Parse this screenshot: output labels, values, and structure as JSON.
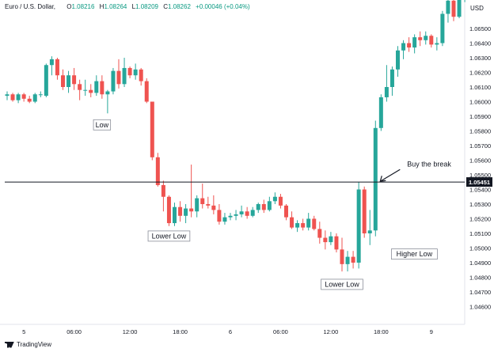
{
  "header": {
    "symbol": "Euro / U.S. Dollar,",
    "o_label": "O",
    "o_value": "1.08216",
    "h_label": "H",
    "h_value": "1.08264",
    "l_label": "L",
    "l_value": "1.08209",
    "c_label": "C",
    "c_value": "1.08262",
    "change": "+0.00046 (+0.04%)"
  },
  "currency": "USD",
  "branding": "TradingView",
  "colors": {
    "up": "#26a69a",
    "down": "#ef5350",
    "line": "#131722",
    "axis_text": "#131722"
  },
  "chart_data": {
    "type": "candlestick",
    "y_ticks": [
      "1.06500",
      "1.06400",
      "1.06300",
      "1.06200",
      "1.06100",
      "1.06000",
      "1.05900",
      "1.05800",
      "1.05700",
      "1.05600",
      "1.05500",
      "1.05400",
      "1.05300",
      "1.05200",
      "1.05100",
      "1.05000",
      "1.04900",
      "1.04800",
      "1.04700",
      "1.04600"
    ],
    "y_ticks_num": [
      1.065,
      1.064,
      1.063,
      1.062,
      1.061,
      1.06,
      1.059,
      1.058,
      1.057,
      1.056,
      1.055,
      1.054,
      1.053,
      1.052,
      1.051,
      1.05,
      1.049,
      1.048,
      1.047,
      1.046
    ],
    "x_ticks": [
      "5",
      "06:00",
      "12:00",
      "18:00",
      "6",
      "06:00",
      "12:00",
      "18:00",
      "9"
    ],
    "x_tick_index": [
      3,
      12,
      22,
      31,
      40,
      49,
      58,
      67,
      76
    ],
    "horizontal_level": {
      "value": 1.05451,
      "label": "1.05451"
    },
    "annotations": [
      {
        "text": "Low",
        "index": 17,
        "price": 1.0592,
        "place": "below"
      },
      {
        "text": "Lower Low",
        "index": 29,
        "price": 1.0516,
        "place": "below"
      },
      {
        "text": "Lower Low",
        "index": 60,
        "price": 1.0483,
        "place": "below"
      },
      {
        "text": "Higher Low",
        "index": 68,
        "price": 1.0501,
        "place": "right"
      },
      {
        "text": "Buy the break",
        "index": 66,
        "price": 1.0545,
        "place": "arrow"
      }
    ],
    "candles": [
      {
        "o": 1.0604,
        "h": 1.0607,
        "l": 1.0601,
        "c": 1.0605
      },
      {
        "o": 1.0605,
        "h": 1.0606,
        "l": 1.06,
        "c": 1.0601
      },
      {
        "o": 1.0601,
        "h": 1.0606,
        "l": 1.0599,
        "c": 1.0605
      },
      {
        "o": 1.0605,
        "h": 1.0606,
        "l": 1.06,
        "c": 1.0602
      },
      {
        "o": 1.0602,
        "h": 1.0604,
        "l": 1.0599,
        "c": 1.06
      },
      {
        "o": 1.06,
        "h": 1.0606,
        "l": 1.0599,
        "c": 1.0605
      },
      {
        "o": 1.0605,
        "h": 1.0607,
        "l": 1.0603,
        "c": 1.0605
      },
      {
        "o": 1.0604,
        "h": 1.0626,
        "l": 1.0603,
        "c": 1.0625
      },
      {
        "o": 1.0625,
        "h": 1.0631,
        "l": 1.0618,
        "c": 1.0629
      },
      {
        "o": 1.0629,
        "h": 1.063,
        "l": 1.0615,
        "c": 1.0618
      },
      {
        "o": 1.0618,
        "h": 1.0622,
        "l": 1.0608,
        "c": 1.061
      },
      {
        "o": 1.061,
        "h": 1.0621,
        "l": 1.0606,
        "c": 1.0618
      },
      {
        "o": 1.0618,
        "h": 1.0623,
        "l": 1.0608,
        "c": 1.0612
      },
      {
        "o": 1.0612,
        "h": 1.0615,
        "l": 1.0601,
        "c": 1.0608
      },
      {
        "o": 1.0608,
        "h": 1.0615,
        "l": 1.0604,
        "c": 1.0608
      },
      {
        "o": 1.0608,
        "h": 1.0612,
        "l": 1.0603,
        "c": 1.0606
      },
      {
        "o": 1.0606,
        "h": 1.0618,
        "l": 1.0604,
        "c": 1.0614
      },
      {
        "o": 1.0614,
        "h": 1.0618,
        "l": 1.0602,
        "c": 1.0605
      },
      {
        "o": 1.0605,
        "h": 1.0608,
        "l": 1.0592,
        "c": 1.0607
      },
      {
        "o": 1.0607,
        "h": 1.0623,
        "l": 1.0605,
        "c": 1.0621
      },
      {
        "o": 1.0621,
        "h": 1.0629,
        "l": 1.0609,
        "c": 1.0612
      },
      {
        "o": 1.0612,
        "h": 1.063,
        "l": 1.061,
        "c": 1.0623
      },
      {
        "o": 1.0623,
        "h": 1.0624,
        "l": 1.0616,
        "c": 1.0618
      },
      {
        "o": 1.0618,
        "h": 1.0626,
        "l": 1.0615,
        "c": 1.0622
      },
      {
        "o": 1.0622,
        "h": 1.0623,
        "l": 1.0611,
        "c": 1.0614
      },
      {
        "o": 1.0614,
        "h": 1.0616,
        "l": 1.0599,
        "c": 1.06
      },
      {
        "o": 1.06,
        "h": 1.06,
        "l": 1.056,
        "c": 1.0562
      },
      {
        "o": 1.0562,
        "h": 1.0565,
        "l": 1.0542,
        "c": 1.0543
      },
      {
        "o": 1.0543,
        "h": 1.0546,
        "l": 1.0525,
        "c": 1.0535
      },
      {
        "o": 1.0535,
        "h": 1.0536,
        "l": 1.0515,
        "c": 1.0517
      },
      {
        "o": 1.0517,
        "h": 1.0531,
        "l": 1.0515,
        "c": 1.0528
      },
      {
        "o": 1.0528,
        "h": 1.0532,
        "l": 1.0518,
        "c": 1.0522
      },
      {
        "o": 1.0522,
        "h": 1.053,
        "l": 1.0517,
        "c": 1.0527
      },
      {
        "o": 1.0527,
        "h": 1.0557,
        "l": 1.0521,
        "c": 1.0525
      },
      {
        "o": 1.0525,
        "h": 1.0536,
        "l": 1.0521,
        "c": 1.0534
      },
      {
        "o": 1.0534,
        "h": 1.0544,
        "l": 1.0527,
        "c": 1.053
      },
      {
        "o": 1.053,
        "h": 1.0535,
        "l": 1.0527,
        "c": 1.0529
      },
      {
        "o": 1.0529,
        "h": 1.0536,
        "l": 1.0523,
        "c": 1.0526
      },
      {
        "o": 1.0526,
        "h": 1.053,
        "l": 1.0516,
        "c": 1.0518
      },
      {
        "o": 1.0518,
        "h": 1.0524,
        "l": 1.0516,
        "c": 1.0521
      },
      {
        "o": 1.0521,
        "h": 1.0524,
        "l": 1.0519,
        "c": 1.0522
      },
      {
        "o": 1.0522,
        "h": 1.0526,
        "l": 1.0519,
        "c": 1.0523
      },
      {
        "o": 1.0523,
        "h": 1.0529,
        "l": 1.0521,
        "c": 1.0525
      },
      {
        "o": 1.0525,
        "h": 1.0528,
        "l": 1.052,
        "c": 1.0522
      },
      {
        "o": 1.0522,
        "h": 1.0528,
        "l": 1.0521,
        "c": 1.0526
      },
      {
        "o": 1.0526,
        "h": 1.0531,
        "l": 1.0524,
        "c": 1.053
      },
      {
        "o": 1.053,
        "h": 1.0533,
        "l": 1.0524,
        "c": 1.0526
      },
      {
        "o": 1.0526,
        "h": 1.0535,
        "l": 1.0525,
        "c": 1.0532
      },
      {
        "o": 1.0532,
        "h": 1.0538,
        "l": 1.053,
        "c": 1.0535
      },
      {
        "o": 1.0535,
        "h": 1.0537,
        "l": 1.0527,
        "c": 1.0529
      },
      {
        "o": 1.0529,
        "h": 1.053,
        "l": 1.0519,
        "c": 1.0521
      },
      {
        "o": 1.0521,
        "h": 1.0525,
        "l": 1.0513,
        "c": 1.0514
      },
      {
        "o": 1.0514,
        "h": 1.0519,
        "l": 1.0511,
        "c": 1.0517
      },
      {
        "o": 1.0517,
        "h": 1.052,
        "l": 1.0512,
        "c": 1.0514
      },
      {
        "o": 1.0514,
        "h": 1.0524,
        "l": 1.0512,
        "c": 1.052
      },
      {
        "o": 1.052,
        "h": 1.0522,
        "l": 1.0512,
        "c": 1.0513
      },
      {
        "o": 1.0513,
        "h": 1.0518,
        "l": 1.0503,
        "c": 1.0507
      },
      {
        "o": 1.0507,
        "h": 1.0512,
        "l": 1.0499,
        "c": 1.0504
      },
      {
        "o": 1.0504,
        "h": 1.0511,
        "l": 1.0502,
        "c": 1.0508
      },
      {
        "o": 1.0508,
        "h": 1.051,
        "l": 1.0497,
        "c": 1.0499
      },
      {
        "o": 1.0499,
        "h": 1.0507,
        "l": 1.0484,
        "c": 1.0489
      },
      {
        "o": 1.0489,
        "h": 1.0498,
        "l": 1.0484,
        "c": 1.0494
      },
      {
        "o": 1.0494,
        "h": 1.0498,
        "l": 1.0486,
        "c": 1.049
      },
      {
        "o": 1.049,
        "h": 1.0545,
        "l": 1.0486,
        "c": 1.054
      },
      {
        "o": 1.054,
        "h": 1.0542,
        "l": 1.0507,
        "c": 1.051
      },
      {
        "o": 1.051,
        "h": 1.0526,
        "l": 1.0502,
        "c": 1.0512
      },
      {
        "o": 1.0512,
        "h": 1.0587,
        "l": 1.0508,
        "c": 1.0582
      },
      {
        "o": 1.0582,
        "h": 1.0605,
        "l": 1.058,
        "c": 1.0603
      },
      {
        "o": 1.0603,
        "h": 1.0625,
        "l": 1.06,
        "c": 1.061
      },
      {
        "o": 1.061,
        "h": 1.0624,
        "l": 1.0604,
        "c": 1.0622
      },
      {
        "o": 1.0622,
        "h": 1.0638,
        "l": 1.0617,
        "c": 1.0635
      },
      {
        "o": 1.0635,
        "h": 1.0642,
        "l": 1.0629,
        "c": 1.064
      },
      {
        "o": 1.064,
        "h": 1.0644,
        "l": 1.0634,
        "c": 1.0637
      },
      {
        "o": 1.0637,
        "h": 1.0646,
        "l": 1.0633,
        "c": 1.0644
      },
      {
        "o": 1.0644,
        "h": 1.0648,
        "l": 1.0638,
        "c": 1.0642
      },
      {
        "o": 1.0642,
        "h": 1.0648,
        "l": 1.0639,
        "c": 1.0645
      },
      {
        "o": 1.0645,
        "h": 1.0646,
        "l": 1.0637,
        "c": 1.0639
      },
      {
        "o": 1.0639,
        "h": 1.0644,
        "l": 1.0635,
        "c": 1.064
      },
      {
        "o": 1.064,
        "h": 1.0662,
        "l": 1.0638,
        "c": 1.066
      },
      {
        "o": 1.066,
        "h": 1.067,
        "l": 1.0654,
        "c": 1.0669
      },
      {
        "o": 1.0669,
        "h": 1.0672,
        "l": 1.0655,
        "c": 1.0658
      },
      {
        "o": 1.0658,
        "h": 1.0672,
        "l": 1.0657,
        "c": 1.067
      },
      {
        "o": 1.067,
        "h": 1.0674,
        "l": 1.0668,
        "c": 1.0673
      }
    ]
  }
}
